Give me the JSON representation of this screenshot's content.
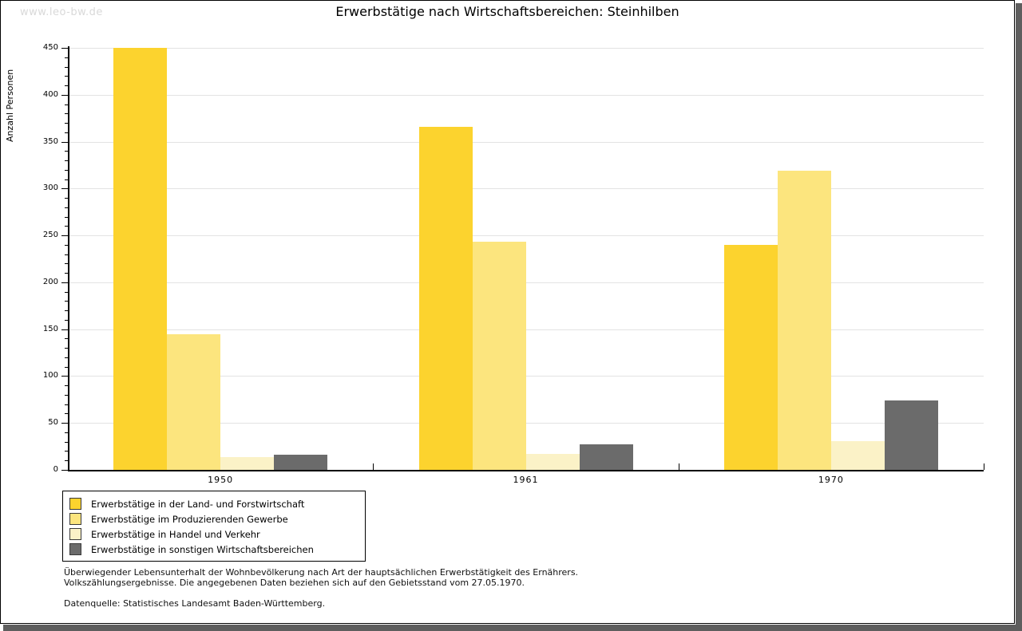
{
  "watermark": "www.leo-bw.de",
  "title": "Erwerbstätige nach Wirtschaftsbereichen: Steinhilben",
  "chart_data": {
    "type": "bar",
    "title": "Erwerbstätige nach Wirtschaftsbereichen: Steinhilben",
    "xlabel": "",
    "ylabel": "Anzahl Personen",
    "categories": [
      "1950",
      "1961",
      "1970"
    ],
    "series": [
      {
        "name": "Erwerbstätige in der Land- und Forstwirtschaft",
        "color": "#fcd32e",
        "values": [
          450,
          366,
          240
        ]
      },
      {
        "name": "Erwerbstätige im Produzierenden Gewerbe",
        "color": "#fce57e",
        "values": [
          145,
          243,
          319
        ]
      },
      {
        "name": "Erwerbstätige in Handel und Verkehr",
        "color": "#fbf2c7",
        "values": [
          14,
          17,
          31
        ]
      },
      {
        "name": "Erwerbstätige in sonstigen Wirtschaftsbereichen",
        "color": "#6b6b6b",
        "values": [
          16,
          27,
          74
        ]
      }
    ],
    "ylim": [
      0,
      450
    ],
    "ytick_step": 50,
    "minor_tick_step": 10,
    "grid": true,
    "legend_position": "bottom-left"
  },
  "footnotes": {
    "line1": "Überwiegender Lebensunterhalt der Wohnbevölkerung nach Art der hauptsächlichen Erwerbstätigkeit des Ernährers.",
    "line2": "Volkszählungsergebnisse. Die angegebenen Daten beziehen sich auf den Gebietsstand vom 27.05.1970.",
    "source": "Datenquelle: Statistisches Landesamt Baden-Württemberg."
  }
}
